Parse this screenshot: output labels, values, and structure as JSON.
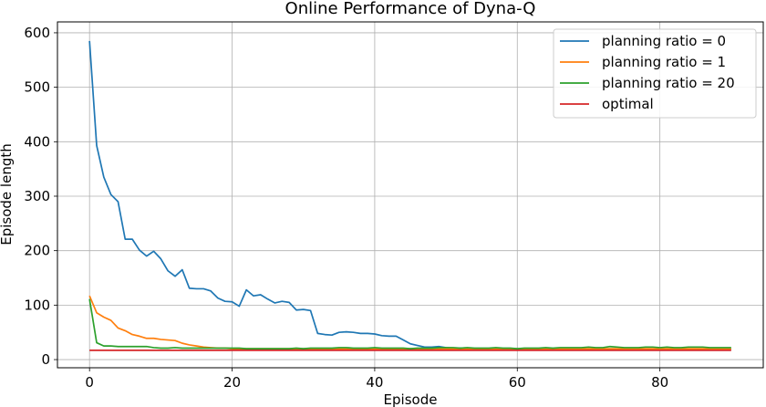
{
  "chart_data": {
    "type": "line",
    "title": "Online Performance of Dyna-Q",
    "xlabel": "Episode",
    "ylabel": "Episode length",
    "xlim": [
      -4.5,
      94.5
    ],
    "ylim": [
      -15,
      620
    ],
    "xticks": [
      0,
      20,
      40,
      60,
      80
    ],
    "yticks": [
      0,
      100,
      200,
      300,
      400,
      500,
      600
    ],
    "grid": true,
    "legend_position": "top-right",
    "series": [
      {
        "name": "planning ratio = 0",
        "color": "#1f77b4",
        "x": [
          0,
          1,
          2,
          3,
          4,
          5,
          6,
          7,
          8,
          9,
          10,
          11,
          12,
          13,
          14,
          15,
          16,
          17,
          18,
          19,
          20,
          21,
          22,
          23,
          24,
          25,
          26,
          27,
          28,
          29,
          30,
          31,
          32,
          33,
          34,
          35,
          36,
          37,
          38,
          39,
          40,
          41,
          42,
          43,
          44,
          45,
          46,
          47,
          48,
          49,
          50,
          51,
          52,
          53,
          54,
          55,
          56,
          57,
          58,
          59,
          60,
          61,
          62,
          63,
          64,
          65,
          66,
          67,
          68,
          69,
          70,
          71,
          72,
          73,
          74,
          75,
          76,
          77,
          78,
          79,
          80,
          81,
          82,
          83,
          84,
          85,
          86,
          87,
          88,
          89,
          90
        ],
        "values": [
          585,
          393,
          335,
          303,
          290,
          221,
          221,
          201,
          190,
          199,
          185,
          163,
          153,
          165,
          131,
          130,
          130,
          126,
          113,
          107,
          106,
          98,
          128,
          117,
          119,
          111,
          104,
          107,
          105,
          91,
          92,
          90,
          48,
          46,
          45,
          50,
          51,
          50,
          48,
          48,
          47,
          44,
          43,
          43,
          36,
          29,
          26,
          23,
          23,
          24,
          22,
          21,
          21,
          21,
          20,
          20,
          20,
          20,
          19,
          19,
          19,
          19,
          19,
          19,
          19,
          19,
          19,
          19,
          19,
          19,
          19,
          19,
          19,
          19,
          19,
          19,
          19,
          19,
          19,
          19,
          19,
          19,
          19,
          19,
          19,
          19,
          19,
          19,
          19,
          19,
          19
        ]
      },
      {
        "name": "planning ratio = 1",
        "color": "#ff7f0e",
        "x": [
          0,
          1,
          2,
          3,
          4,
          5,
          6,
          7,
          8,
          9,
          10,
          11,
          12,
          13,
          14,
          15,
          16,
          17,
          18,
          19,
          20,
          21,
          22,
          23,
          24,
          25,
          26,
          27,
          28,
          29,
          30,
          31,
          32,
          33,
          34,
          35,
          36,
          37,
          38,
          39,
          40,
          41,
          42,
          43,
          44,
          45,
          46,
          47,
          48,
          49,
          50,
          51,
          52,
          53,
          54,
          55,
          56,
          57,
          58,
          59,
          60,
          61,
          62,
          63,
          64,
          65,
          66,
          67,
          68,
          69,
          70,
          71,
          72,
          73,
          74,
          75,
          76,
          77,
          78,
          79,
          80,
          81,
          82,
          83,
          84,
          85,
          86,
          87,
          88,
          89,
          90
        ],
        "values": [
          117,
          86,
          78,
          72,
          58,
          53,
          46,
          43,
          39,
          39,
          37,
          36,
          35,
          30,
          27,
          25,
          23,
          22,
          21,
          21,
          20,
          20,
          20,
          20,
          20,
          20,
          20,
          20,
          20,
          20,
          20,
          20,
          20,
          20,
          20,
          20,
          20,
          20,
          20,
          20,
          20,
          20,
          20,
          20,
          20,
          20,
          20,
          20,
          20,
          20,
          20,
          20,
          20,
          20,
          20,
          20,
          20,
          20,
          20,
          20,
          20,
          20,
          20,
          20,
          20,
          20,
          20,
          20,
          20,
          20,
          20,
          20,
          20,
          20,
          20,
          20,
          20,
          20,
          20,
          20,
          20,
          20,
          20,
          20,
          20,
          20,
          20,
          20,
          20,
          20,
          20
        ]
      },
      {
        "name": "planning ratio = 20",
        "color": "#2ca02c",
        "x": [
          0,
          1,
          2,
          3,
          4,
          5,
          6,
          7,
          8,
          9,
          10,
          11,
          12,
          13,
          14,
          15,
          16,
          17,
          18,
          19,
          20,
          21,
          22,
          23,
          24,
          25,
          26,
          27,
          28,
          29,
          30,
          31,
          32,
          33,
          34,
          35,
          36,
          37,
          38,
          39,
          40,
          41,
          42,
          43,
          44,
          45,
          46,
          47,
          48,
          49,
          50,
          51,
          52,
          53,
          54,
          55,
          56,
          57,
          58,
          59,
          60,
          61,
          62,
          63,
          64,
          65,
          66,
          67,
          68,
          69,
          70,
          71,
          72,
          73,
          74,
          75,
          76,
          77,
          78,
          79,
          80,
          81,
          82,
          83,
          84,
          85,
          86,
          87,
          88,
          89,
          90
        ],
        "values": [
          111,
          31,
          25,
          25,
          24,
          24,
          24,
          24,
          24,
          22,
          21,
          21,
          22,
          21,
          21,
          21,
          21,
          21,
          21,
          21,
          21,
          21,
          20,
          20,
          20,
          20,
          20,
          20,
          20,
          21,
          20,
          21,
          21,
          21,
          21,
          22,
          22,
          21,
          21,
          21,
          22,
          21,
          21,
          21,
          21,
          20,
          21,
          21,
          21,
          22,
          22,
          22,
          21,
          22,
          21,
          21,
          21,
          22,
          21,
          21,
          20,
          21,
          21,
          21,
          22,
          21,
          22,
          22,
          22,
          22,
          23,
          22,
          22,
          24,
          23,
          22,
          22,
          22,
          23,
          23,
          22,
          23,
          22,
          22,
          23,
          23,
          23,
          22,
          22,
          22,
          22
        ]
      },
      {
        "name": "optimal",
        "color": "#d62728",
        "x": [
          0,
          90
        ],
        "values": [
          17,
          17
        ]
      }
    ]
  }
}
